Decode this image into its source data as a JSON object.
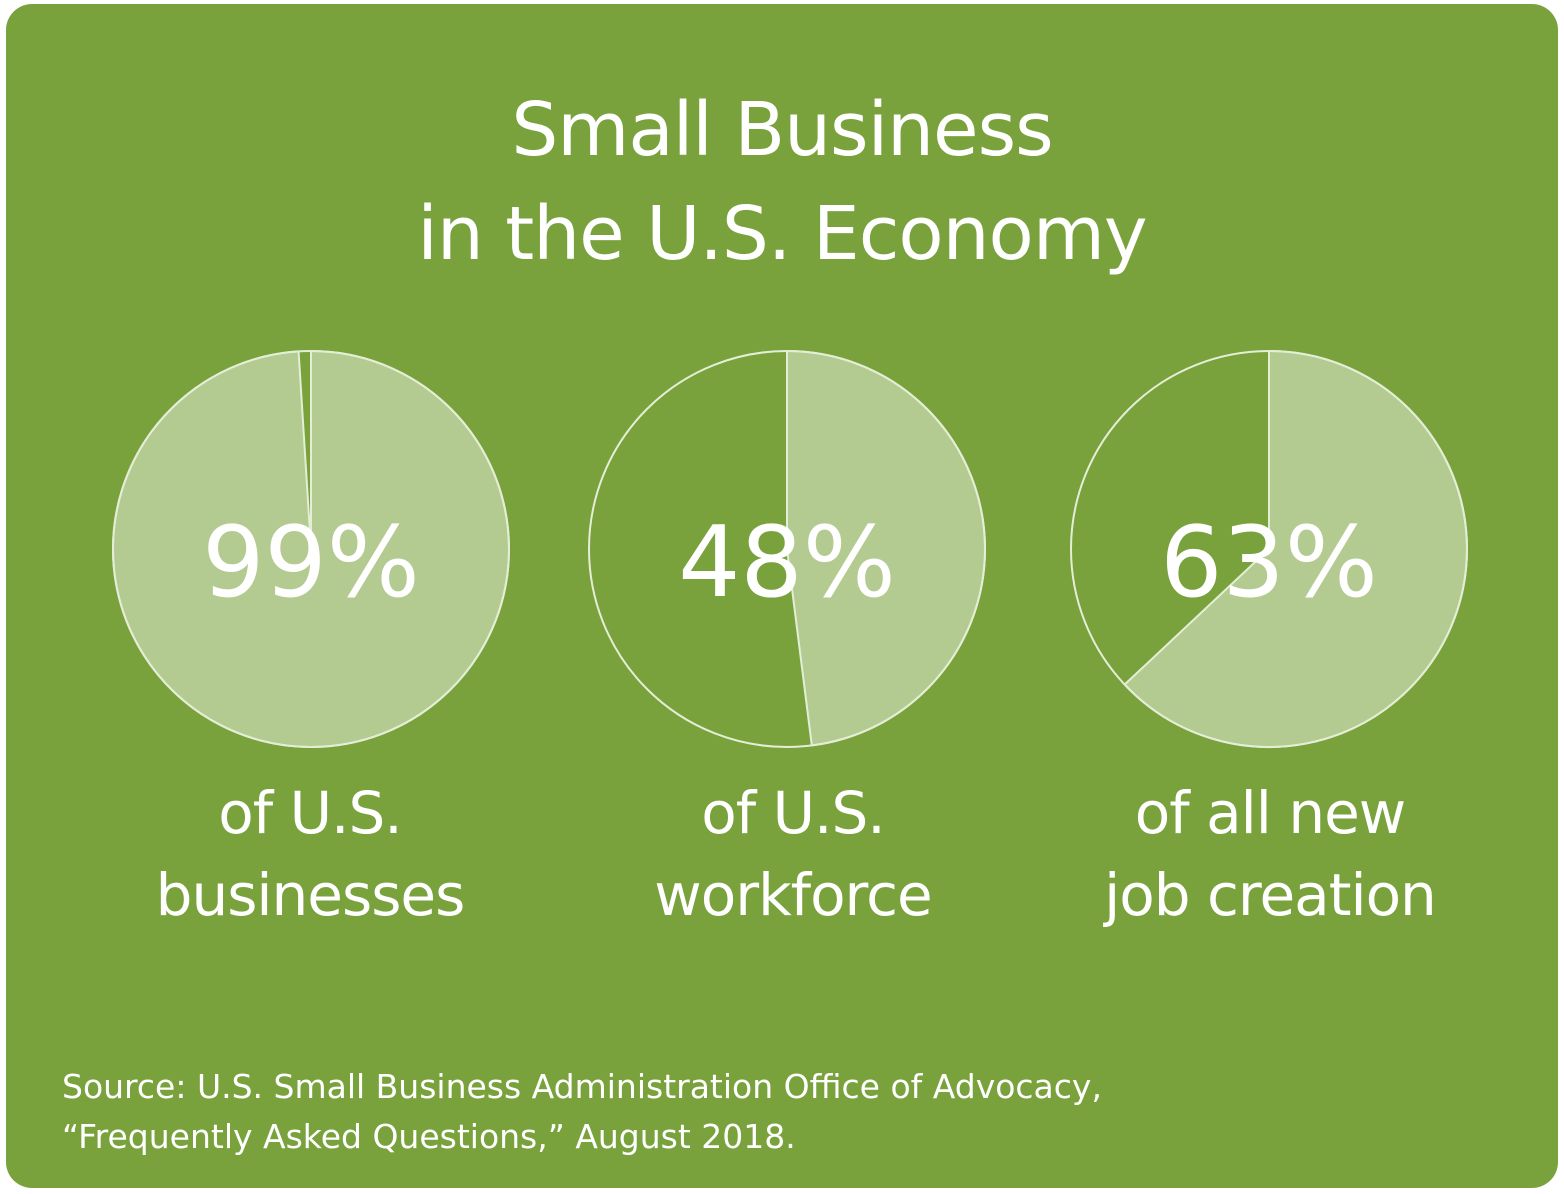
{
  "title": {
    "line1": "Small Business",
    "line2": "in the U.S. Economy"
  },
  "colors": {
    "background": "#79a23c",
    "slice": "#b3ca90",
    "outline": "#e4eed6",
    "text": "#ffffff"
  },
  "chart_data": [
    {
      "type": "pie",
      "values": [
        99,
        1
      ],
      "label": "99%",
      "caption": [
        "of U.S.",
        "businesses"
      ]
    },
    {
      "type": "pie",
      "values": [
        48,
        52
      ],
      "label": "48%",
      "caption": [
        "of U.S.",
        "workforce"
      ]
    },
    {
      "type": "pie",
      "values": [
        63,
        37
      ],
      "label": "63%",
      "caption": [
        "of all new",
        "job creation"
      ]
    }
  ],
  "source": {
    "line1": "Source: U.S. Small Business Administration Office of Advocacy,",
    "line2": "“Frequently Asked Questions,” August 2018."
  }
}
